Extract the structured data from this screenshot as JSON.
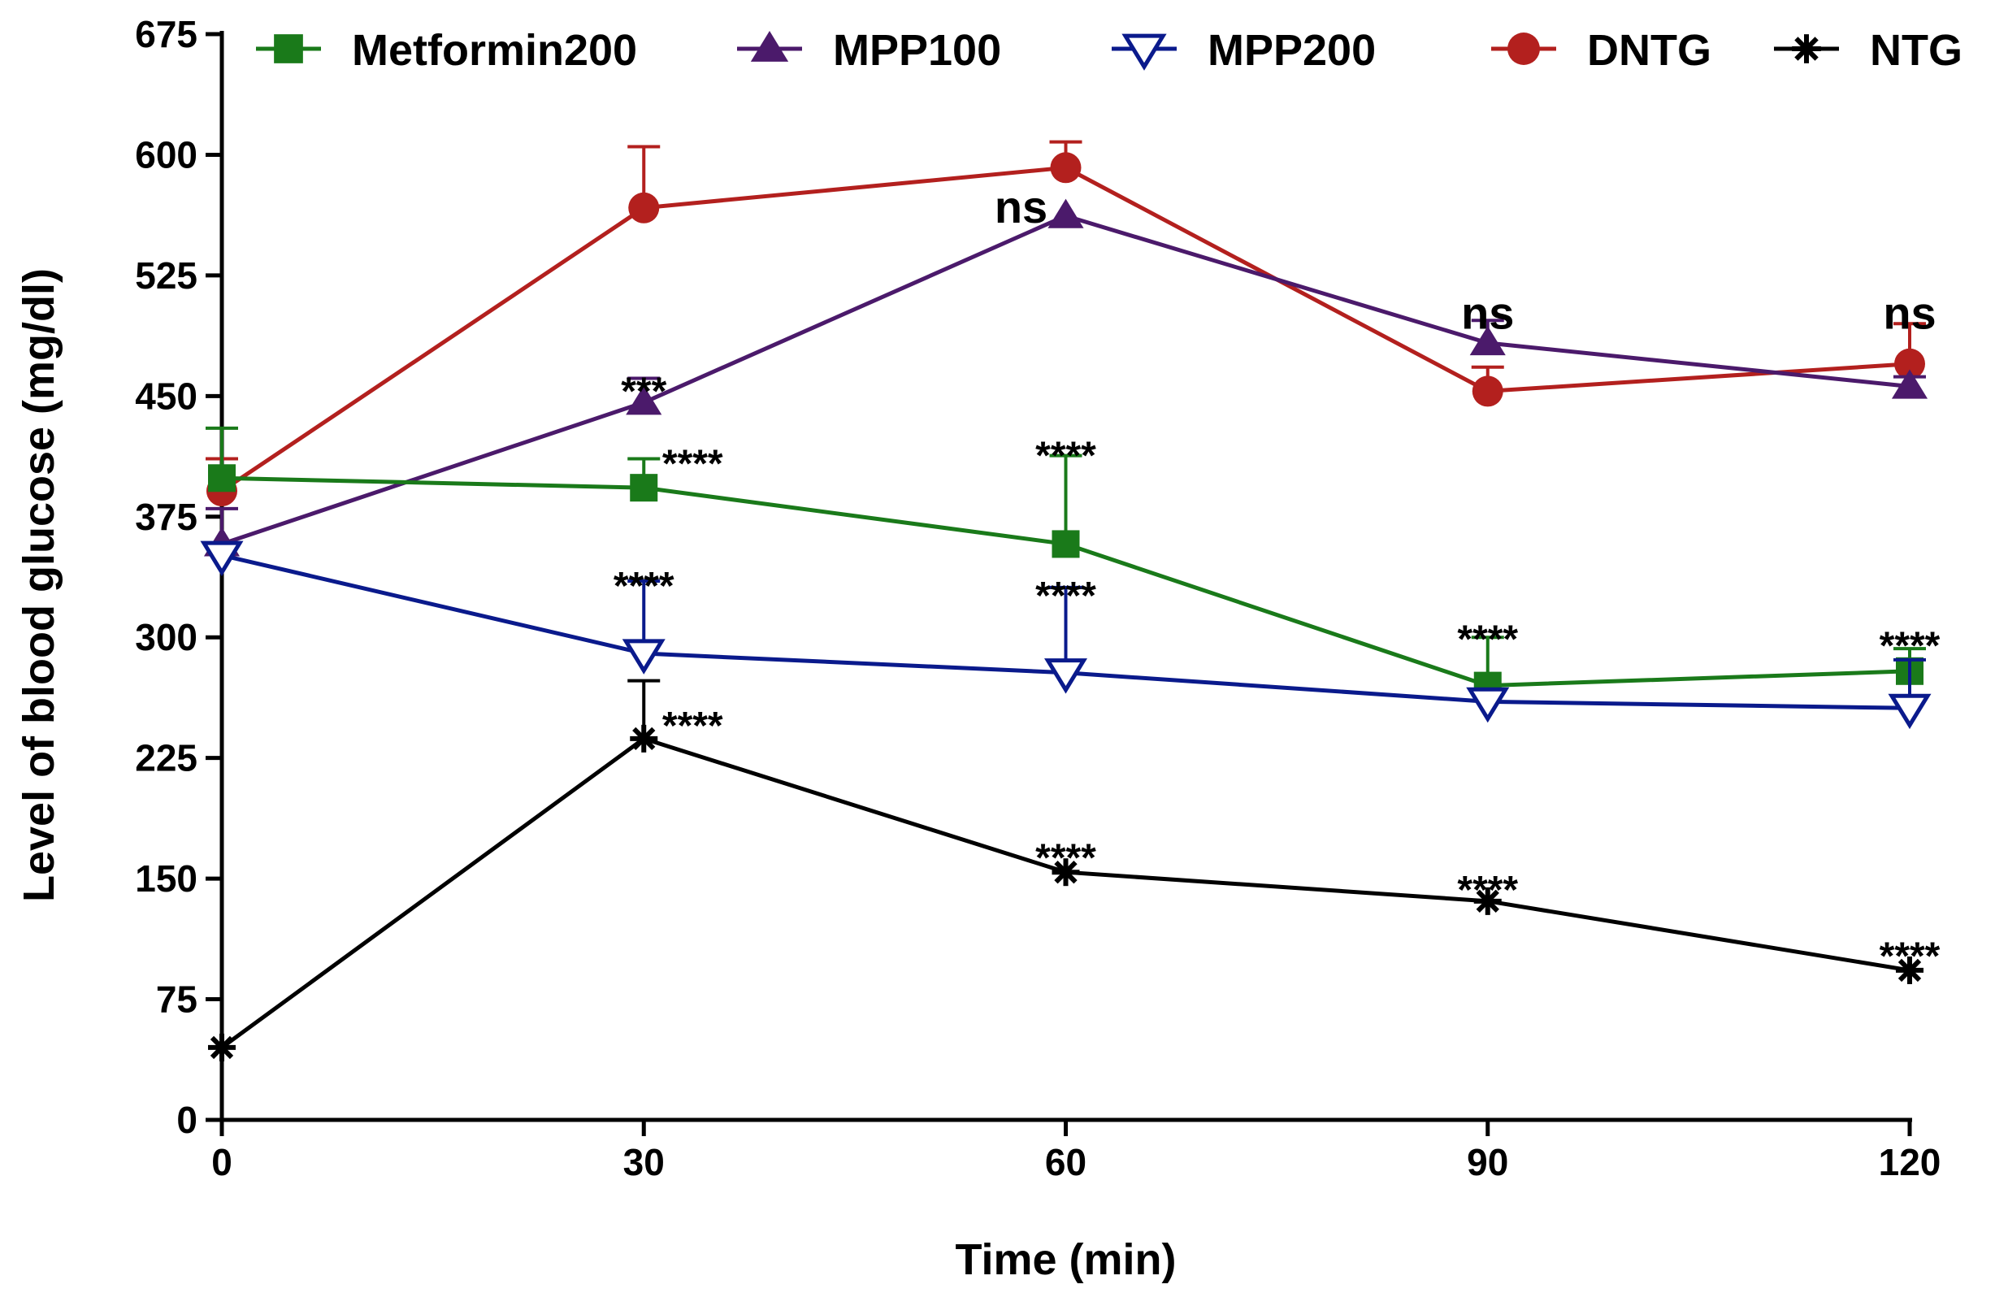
{
  "chart_data": {
    "type": "line",
    "title": "",
    "xlabel": "Time (min)",
    "ylabel": "Level of blood glucose (mg/dl)",
    "x": [
      0,
      30,
      60,
      90,
      120
    ],
    "x_tick_labels": [
      "0",
      "30",
      "60",
      "90",
      "120"
    ],
    "xlim": [
      0,
      120
    ],
    "ylim": [
      0,
      675
    ],
    "y_ticks": [
      0,
      75,
      150,
      225,
      300,
      375,
      450,
      525,
      600,
      675
    ],
    "y_tick_labels": [
      "0",
      "75",
      "150",
      "225",
      "300",
      "375",
      "450",
      "525",
      "600",
      "675"
    ],
    "grid": false,
    "legend_position": "top",
    "series": [
      {
        "name": "Metformin200",
        "marker": "square",
        "color": "#1a7a1a",
        "values": [
          399,
          393,
          358,
          270,
          279
        ],
        "errors": [
          31,
          18,
          55,
          30,
          14
        ]
      },
      {
        "name": "MPP100",
        "marker": "triangle-up",
        "color": "#4b1a6b",
        "values": [
          358,
          446,
          562,
          483,
          456
        ],
        "errors": [
          22,
          15,
          0,
          14,
          6
        ]
      },
      {
        "name": "MPP200",
        "marker": "triangle-down-open",
        "color": "#0a1a8c",
        "values": [
          351,
          290,
          278,
          260,
          256
        ],
        "errors": [
          0,
          45,
          53,
          6,
          30
        ]
      },
      {
        "name": "DNTG",
        "marker": "circle",
        "color": "#b3201e",
        "values": [
          391,
          567,
          592,
          453,
          470
        ],
        "errors": [
          20,
          38,
          16,
          15,
          25
        ]
      },
      {
        "name": "NTG",
        "marker": "asterisk",
        "color": "#000000",
        "values": [
          45,
          237,
          154,
          136,
          93
        ],
        "errors": [
          0,
          36,
          0,
          0,
          0
        ]
      }
    ],
    "annotations": [
      {
        "text": "***",
        "x": 30,
        "y": 460
      },
      {
        "text": "****",
        "x": 30,
        "y": 415
      },
      {
        "text": "****",
        "x": 30,
        "y": 339
      },
      {
        "text": "****",
        "x": 30,
        "y": 252
      },
      {
        "text": "ns",
        "x": 60,
        "y": 567
      },
      {
        "text": "****",
        "x": 60,
        "y": 420
      },
      {
        "text": "****",
        "x": 60,
        "y": 333
      },
      {
        "text": "****",
        "x": 60,
        "y": 170
      },
      {
        "text": "ns",
        "x": 90,
        "y": 501
      },
      {
        "text": "****",
        "x": 90,
        "y": 306
      },
      {
        "text": "****",
        "x": 90,
        "y": 150
      },
      {
        "text": "ns",
        "x": 120,
        "y": 501
      },
      {
        "text": "****",
        "x": 120,
        "y": 302
      },
      {
        "text": "****",
        "x": 120,
        "y": 109
      }
    ]
  }
}
